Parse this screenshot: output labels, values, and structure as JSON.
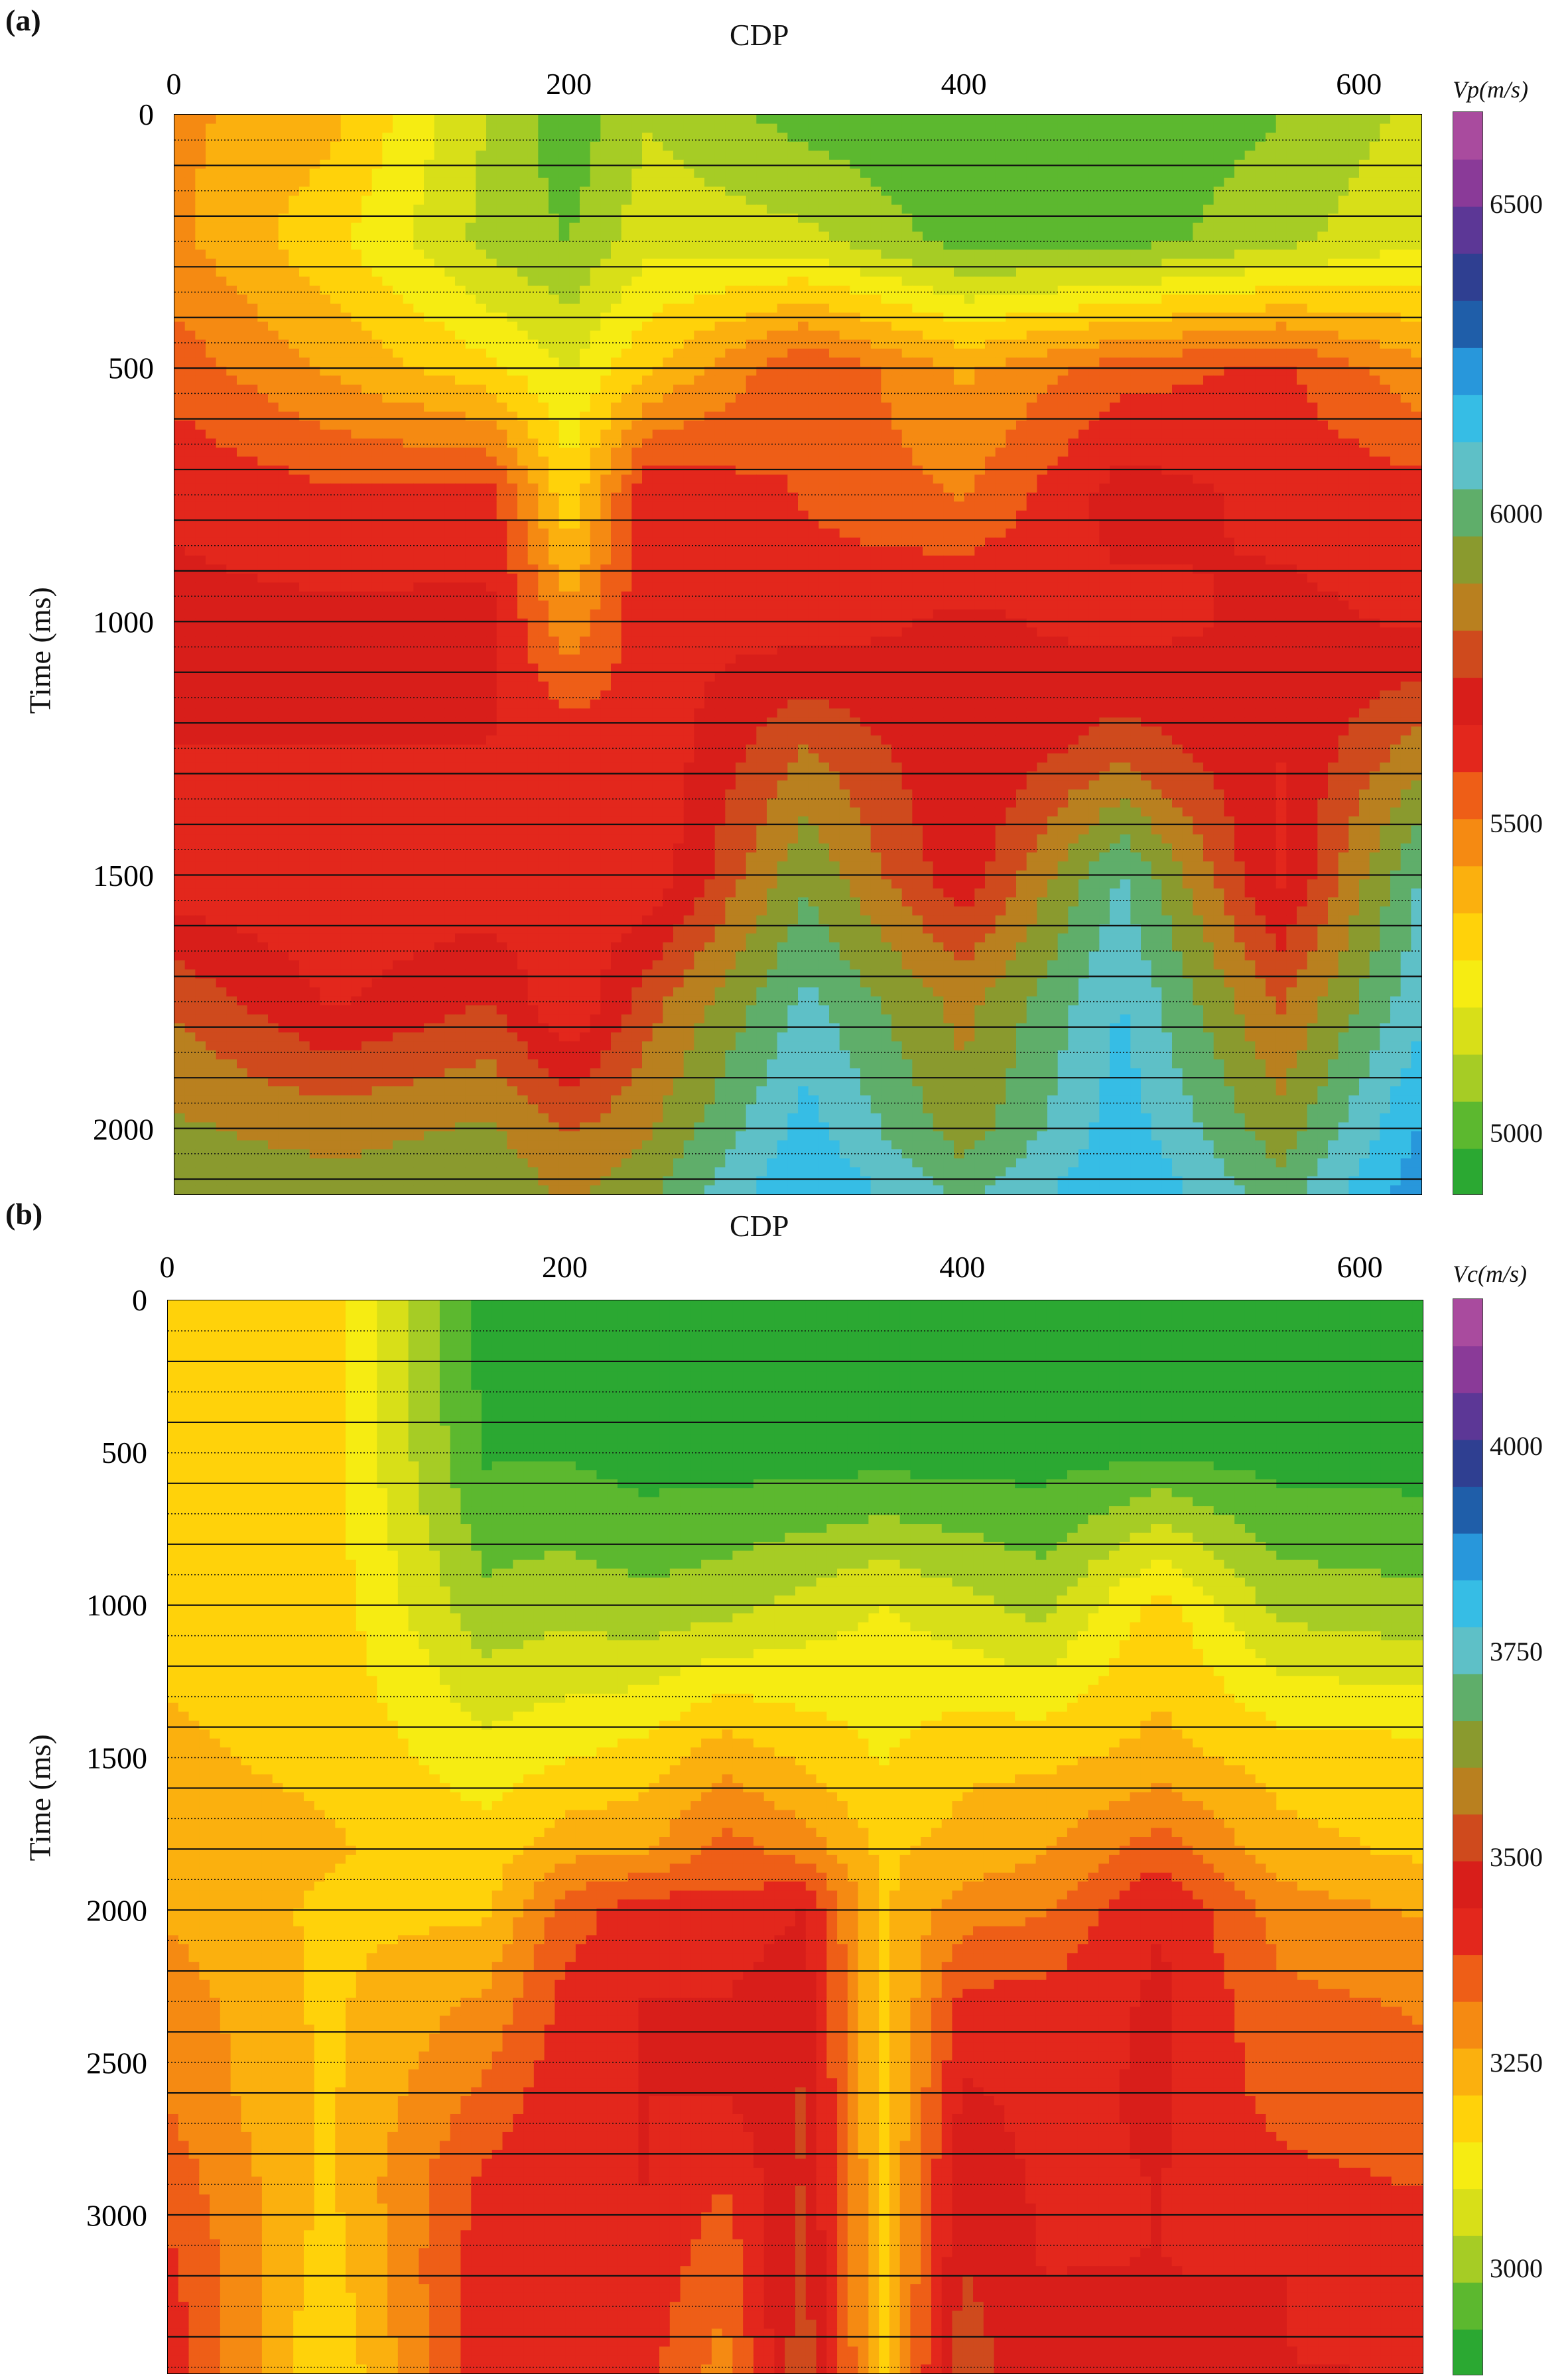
{
  "chart_data": [
    {
      "type": "heatmap",
      "panel_label": "(a)",
      "xlabel": "CDP",
      "ylabel": "Time (ms)",
      "colorbar_label": "Vp(m/s)",
      "x_ticks": [
        0,
        200,
        400,
        600
      ],
      "y_ticks": [
        0,
        500,
        1000,
        1500,
        2000
      ],
      "xlim": [
        0,
        632
      ],
      "ylim": [
        0,
        2130
      ],
      "colorbar_ticks": [
        5000,
        5500,
        6000,
        6500
      ],
      "colorbar_range": [
        4900,
        6650
      ],
      "x": [
        0,
        80,
        160,
        200,
        240,
        320,
        400,
        480,
        560,
        632
      ],
      "y": [
        0,
        250,
        500,
        750,
        1000,
        1250,
        1500,
        1750,
        2000,
        2130
      ],
      "values": [
        [
          5450,
          5380,
          5120,
          5000,
          5120,
          5020,
          4980,
          4990,
          5050,
          5150
        ],
        [
          5450,
          5300,
          5100,
          5050,
          5180,
          5150,
          5020,
          5020,
          5100,
          5200
        ],
        [
          5550,
          5420,
          5300,
          5200,
          5350,
          5580,
          5420,
          5550,
          5600,
          5450
        ],
        [
          5650,
          5600,
          5620,
          5300,
          5650,
          5580,
          5500,
          5700,
          5640,
          5620
        ],
        [
          5680,
          5680,
          5680,
          5450,
          5650,
          5620,
          5680,
          5630,
          5680,
          5650
        ],
        [
          5660,
          5660,
          5660,
          5640,
          5600,
          5820,
          5660,
          5780,
          5660,
          5850
        ],
        [
          5600,
          5600,
          5600,
          5640,
          5600,
          5950,
          5680,
          6050,
          5640,
          6050
        ],
        [
          5800,
          5650,
          5740,
          5580,
          5780,
          6060,
          5860,
          6120,
          5800,
          6100
        ],
        [
          5900,
          5860,
          5900,
          5800,
          5880,
          6150,
          5920,
          6160,
          5920,
          6200
        ],
        [
          5950,
          5920,
          5950,
          5880,
          5950,
          6200,
          6020,
          6200,
          6000,
          6250
        ]
      ]
    },
    {
      "type": "heatmap",
      "panel_label": "(b)",
      "xlabel": "CDP",
      "ylabel": "Time (ms)",
      "colorbar_label": "Vc(m/s)",
      "x_ticks": [
        0,
        200,
        400,
        600
      ],
      "y_ticks": [
        0,
        500,
        1000,
        1500,
        2000,
        2500,
        3000
      ],
      "xlim": [
        0,
        632
      ],
      "ylim": [
        0,
        3520
      ],
      "colorbar_ticks": [
        3000,
        3250,
        3500,
        3750,
        4000
      ],
      "colorbar_range": [
        2870,
        4180
      ],
      "x": [
        0,
        80,
        160,
        200,
        240,
        280,
        320,
        360,
        400,
        440,
        500,
        560,
        632
      ],
      "y": [
        0,
        500,
        1000,
        1500,
        1800,
        2000,
        2300,
        2600,
        2900,
        3200,
        3520
      ],
      "values": [
        [
          3200,
          3180,
          2900,
          2880,
          2880,
          2880,
          2880,
          2880,
          2880,
          2880,
          2880,
          2880,
          2880
        ],
        [
          3200,
          3180,
          2920,
          2920,
          2900,
          2900,
          2900,
          2900,
          2900,
          2900,
          2920,
          2900,
          2900
        ],
        [
          3200,
          3190,
          3000,
          3020,
          3000,
          3020,
          3060,
          3100,
          3060,
          3020,
          3180,
          3020,
          3000
        ],
        [
          3220,
          3200,
          3120,
          3150,
          3180,
          3250,
          3200,
          3150,
          3200,
          3200,
          3230,
          3190,
          3180
        ],
        [
          3240,
          3220,
          3180,
          3250,
          3260,
          3350,
          3300,
          3200,
          3230,
          3260,
          3360,
          3230,
          3200
        ],
        [
          3260,
          3200,
          3200,
          3350,
          3420,
          3400,
          3440,
          3200,
          3300,
          3320,
          3440,
          3300,
          3260
        ],
        [
          3300,
          3200,
          3280,
          3400,
          3440,
          3440,
          3480,
          3180,
          3400,
          3400,
          3450,
          3340,
          3320
        ],
        [
          3320,
          3200,
          3340,
          3420,
          3440,
          3440,
          3500,
          3180,
          3450,
          3420,
          3450,
          3360,
          3340
        ],
        [
          3360,
          3200,
          3400,
          3430,
          3440,
          3380,
          3500,
          3200,
          3480,
          3430,
          3440,
          3400,
          3380
        ],
        [
          3400,
          3180,
          3420,
          3440,
          3420,
          3340,
          3520,
          3200,
          3500,
          3440,
          3440,
          3440,
          3420
        ],
        [
          3420,
          3150,
          3420,
          3440,
          3400,
          3300,
          3540,
          3200,
          3540,
          3440,
          3440,
          3440,
          3440
        ]
      ]
    }
  ],
  "colors": {
    "scale": [
      "#2ba832",
      "#5cb82f",
      "#a6cc25",
      "#d8df18",
      "#f6ec12",
      "#ffd20a",
      "#fbb00e",
      "#f58a12",
      "#ee5e17",
      "#e3271c",
      "#d81e1a",
      "#cf4a1d",
      "#b9801f",
      "#8a9a2e",
      "#5fae6a",
      "#5ec0c7",
      "#36bde5",
      "#2897db",
      "#1f5ea9",
      "#2f3f91",
      "#5c3796",
      "#8a3a98",
      "#a94b9e"
    ]
  }
}
